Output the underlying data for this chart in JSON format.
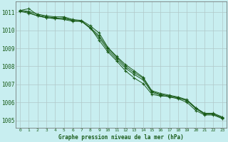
{
  "title": "Graphe pression niveau de la mer (hPa)",
  "background_color": "#c8eef0",
  "grid_color": "#b0c8c8",
  "line_color": "#1a5c1a",
  "x_ticks": [
    0,
    1,
    2,
    3,
    4,
    5,
    6,
    7,
    8,
    9,
    10,
    11,
    12,
    13,
    14,
    15,
    16,
    17,
    18,
    19,
    20,
    21,
    22,
    23
  ],
  "ylim": [
    1004.6,
    1011.6
  ],
  "y_ticks": [
    1005,
    1006,
    1007,
    1008,
    1009,
    1010,
    1011
  ],
  "series": [
    [
      1011.1,
      1011.2,
      1010.85,
      1010.75,
      1010.7,
      1010.65,
      1010.55,
      1010.5,
      1010.15,
      1009.45,
      1008.8,
      1008.3,
      1007.75,
      1007.35,
      1007.05,
      1006.45,
      1006.35,
      1006.35,
      1006.25,
      1006.1,
      1005.7,
      1005.35,
      1005.35,
      1005.15
    ],
    [
      1011.1,
      1011.0,
      1010.8,
      1010.7,
      1010.65,
      1010.6,
      1010.5,
      1010.5,
      1010.1,
      1009.6,
      1008.9,
      1008.4,
      1007.9,
      1007.55,
      1007.25,
      1006.55,
      1006.4,
      1006.3,
      1006.2,
      1006.0,
      1005.55,
      1005.3,
      1005.3,
      1005.1
    ],
    [
      1011.05,
      1010.95,
      1010.8,
      1010.7,
      1010.65,
      1010.7,
      1010.55,
      1010.5,
      1010.15,
      1009.7,
      1009.0,
      1008.5,
      1008.0,
      1007.65,
      1007.35,
      1006.6,
      1006.45,
      1006.35,
      1006.25,
      1006.1,
      1005.65,
      1005.35,
      1005.35,
      1005.15
    ],
    [
      1011.1,
      1011.05,
      1010.9,
      1010.8,
      1010.75,
      1010.75,
      1010.6,
      1010.55,
      1010.25,
      1009.85,
      1009.05,
      1008.55,
      1008.1,
      1007.75,
      1007.4,
      1006.65,
      1006.5,
      1006.4,
      1006.3,
      1006.15,
      1005.7,
      1005.4,
      1005.4,
      1005.2
    ]
  ]
}
